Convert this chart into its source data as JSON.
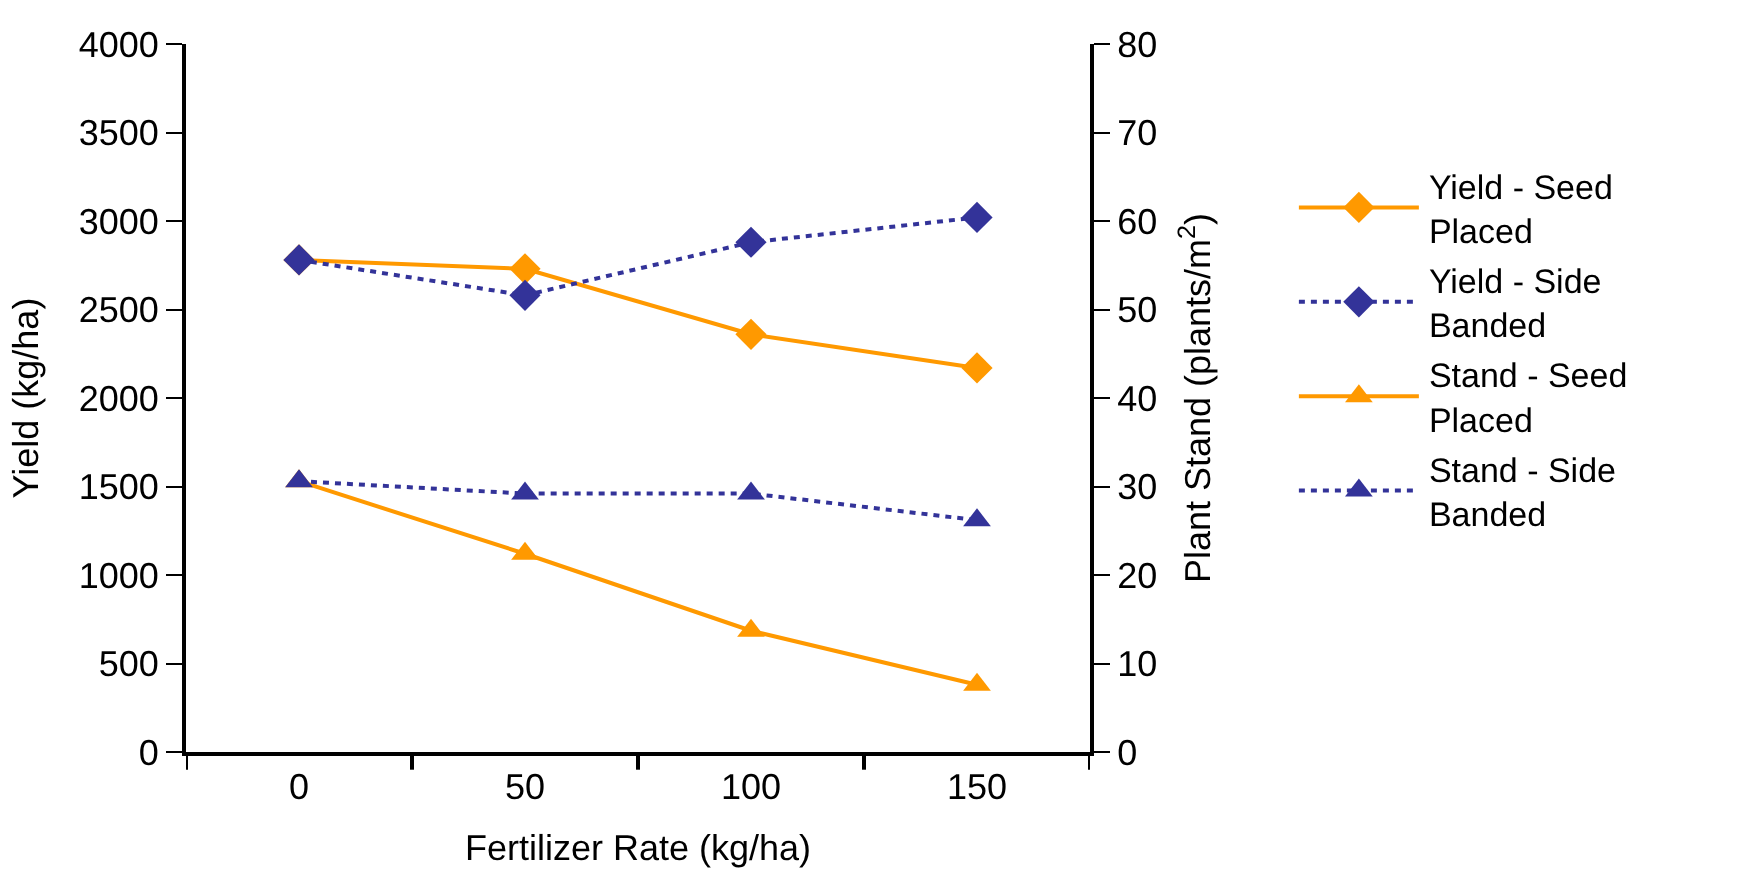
{
  "chart_data": {
    "type": "line",
    "xlabel": "Fertilizer Rate (kg/ha)",
    "ylabel": "Yield (kg/ha)",
    "y2label": "Plant Stand (plants/m$^{2}$)",
    "categories": [
      "0",
      "50",
      "100",
      "150"
    ],
    "ylim": [
      0,
      4000
    ],
    "yticks": [
      0,
      500,
      1000,
      1500,
      2000,
      2500,
      3000,
      3500,
      4000
    ],
    "y2lim": [
      0,
      80
    ],
    "y2ticks": [
      0,
      10,
      20,
      30,
      40,
      50,
      60,
      70,
      80
    ],
    "legend": "right",
    "series": [
      {
        "name": "Yield - Seed Placed",
        "color": "#ff9900",
        "marker": "diamond",
        "line_style": "solid",
        "values": [
          2780,
          2730,
          2360,
          2170
        ]
      },
      {
        "name": "Yield - Side Banded",
        "color": "#333399",
        "marker": "diamond",
        "line_style": "dotted",
        "values": [
          2780,
          2580,
          2880,
          3020
        ]
      },
      {
        "name": "Stand - Seed Placed",
        "color": "#ff9900",
        "marker": "triangle",
        "line_style": "solid",
        "axis": "y2",
        "values": [
          30.6,
          22.4,
          13.7,
          7.6
        ]
      },
      {
        "name": "Stand - Side Banded",
        "color": "#333399",
        "marker": "triangle",
        "line_style": "dotted",
        "axis": "y2",
        "values": [
          30.6,
          29.2,
          29.2,
          26.2
        ]
      }
    ]
  }
}
